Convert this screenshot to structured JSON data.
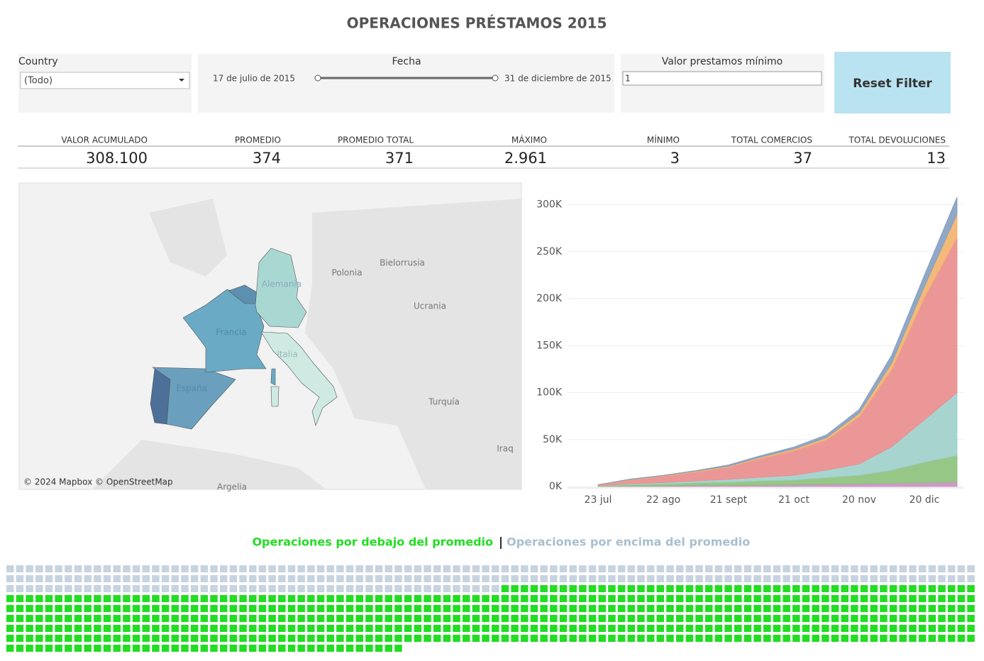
{
  "header": {
    "title": "OPERACIONES PRÉSTAMOS 2015"
  },
  "filters": {
    "country": {
      "label": "Country",
      "value": "(Todo)"
    },
    "fecha": {
      "label": "Fecha",
      "start": "17 de julio de 2015",
      "end": "31 de diciembre de 2015"
    },
    "valor": {
      "label": "Valor prestamos mínimo",
      "value": "1"
    },
    "reset": "Reset Filter"
  },
  "kpis": [
    {
      "label": "VALOR ACUMULADO",
      "value": "308.100"
    },
    {
      "label": "PROMEDIO",
      "value": "374"
    },
    {
      "label": "PROMEDIO TOTAL",
      "value": "371"
    },
    {
      "label": "MÁXIMO",
      "value": "2.961"
    },
    {
      "label": "MÍNIMO",
      "value": "3"
    },
    {
      "label": "TOTAL COMERCIOS",
      "value": "37"
    },
    {
      "label": "TOTAL DEVOLUCIONES",
      "value": "13"
    }
  ],
  "map": {
    "labels": [
      "Polonia",
      "Bielorrusia",
      "Ucrania",
      "Alemania",
      "Francia",
      "Italia",
      "España",
      "Turquía",
      "Iraq",
      "Argelia"
    ],
    "attribution": "© 2024 Mapbox © OpenStreetMap"
  },
  "chart_data": {
    "type": "area",
    "stacked": true,
    "categories": [
      "23 jul",
      null,
      "22 ago",
      null,
      "21 sept",
      null,
      "21 oct",
      null,
      "20 nov",
      null,
      "20 dic",
      null
    ],
    "series": [
      {
        "color": "#c88fc0",
        "values": [
          200,
          500,
          700,
          1000,
          1200,
          1500,
          2000,
          2500,
          3000,
          3500,
          4000,
          5000
        ]
      },
      {
        "color": "#8cc17a",
        "values": [
          500,
          1500,
          2000,
          3000,
          3500,
          4500,
          5000,
          7000,
          9000,
          14000,
          22000,
          28000
        ]
      },
      {
        "color": "#9fcfcb",
        "values": [
          300,
          1000,
          1500,
          2000,
          3000,
          4000,
          5000,
          8000,
          12000,
          25000,
          45000,
          67000
        ]
      },
      {
        "color": "#ea8c8c",
        "values": [
          1000,
          4000,
          7000,
          9500,
          13000,
          20000,
          26000,
          32000,
          50000,
          82000,
          130000,
          165000
        ]
      },
      {
        "color": "#f2b16b",
        "values": [
          0,
          500,
          500,
          1000,
          1000,
          1500,
          2000,
          2500,
          4000,
          7000,
          12000,
          25000
        ]
      },
      {
        "color": "#849fbf",
        "values": [
          0,
          500,
          300,
          500,
          1300,
          1500,
          2000,
          3000,
          4000,
          8500,
          12000,
          18000
        ]
      }
    ],
    "ylim": [
      0,
      320000
    ],
    "yticks": [
      {
        "value": 0,
        "label": "0K"
      },
      {
        "value": 50000,
        "label": "50K"
      },
      {
        "value": 100000,
        "label": "100K"
      },
      {
        "value": 150000,
        "label": "150K"
      },
      {
        "value": 200000,
        "label": "200K"
      },
      {
        "value": 250000,
        "label": "250K"
      },
      {
        "value": 300000,
        "label": "300K"
      }
    ],
    "grid": true
  },
  "waffle": {
    "legend_below": "Operaciones por debajo del promedio",
    "legend_above": "Operaciones por encima del promedio",
    "below_count": 590,
    "above_count": 251,
    "below_color": "#22dd22",
    "above_color": "#c8d3e0"
  }
}
